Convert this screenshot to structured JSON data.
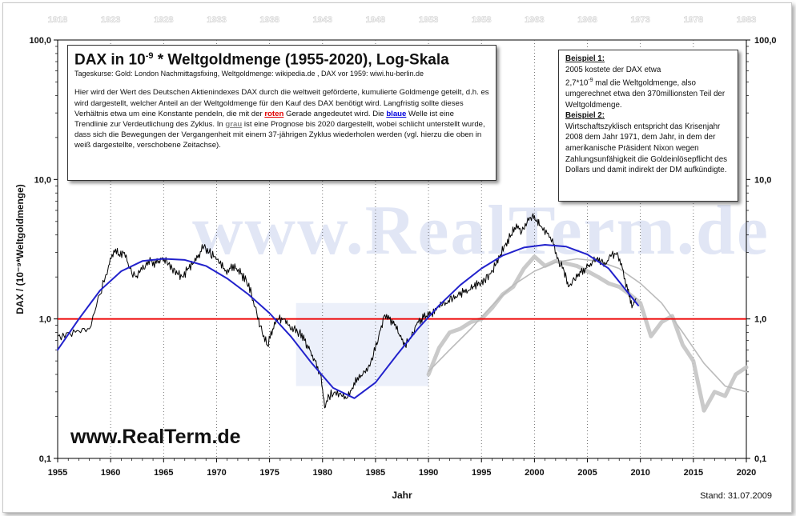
{
  "title_main": "DAX in 10",
  "title_exp": "-9",
  "title_rest": " * Weltgoldmenge  (1955-2020), Log-Skala",
  "sources": "Tageskurse:     Gold: London Nachmittagsfixing,  Weltgoldmenge: wikipedia.de ,  DAX vor 1959:  wiwi.hu-berlin.de",
  "description": {
    "part1": "Hier wird der Wert des Deutschen Aktienindexes DAX durch die weltweit geförderte, kumulierte Goldmenge geteilt, d.h. es wird dargestellt, welcher Anteil an der Weltgoldmenge für den Kauf des DAX benötigt wird. Langfristig sollte dieses Verhältnis etwa um eine Konstante pendeln, die mit der ",
    "kw_red": "roten",
    "part2": " Gerade angedeutet wird. Die ",
    "kw_blue": "blaue",
    "part3": " Welle ist eine Trendlinie zur Verdeutlichung des Zyklus. In ",
    "kw_grey": "grau",
    "part4": " ist eine Prognose bis 2020 dargestellt, wobei schlicht unterstellt wurde, dass sich die Bewegungen der Vergangenheit mit einem 37-jährigen Zyklus wiederholen werden (vgl. hierzu die oben in weiß dargestellte, verschobene Zeitachse)."
  },
  "example1": {
    "title": "Beispiel 1:",
    "line1": "2005 kostete der DAX etwa",
    "line2a": "2,7*10",
    "line2exp": "-9",
    "line2b": " mal die Weltgoldmenge, also umgerechnet etwa den 370millionsten Teil der Weltgoldmenge."
  },
  "example2": {
    "title": "Beispiel 2:",
    "text": "Wirtschaftszyklisch entspricht das Krisenjahr 2008 dem Jahr 1971, dem Jahr, in dem der amerikanische Präsident Nixon wegen Zahlungsunfähigkeit die Goldeinlösepflicht des Dollars und damit indirekt der DM aufkündigte."
  },
  "website": "www.RealTerm.de",
  "watermark": "www.RealTerm.de",
  "stand": "Stand: 31.07.2009",
  "colors": {
    "dax": "#000000",
    "trend": "#2222cc",
    "constant": "#ee0000",
    "forecast": "#bbbbbb",
    "forecast_thick": "#c4c4c4"
  },
  "chart_data": {
    "type": "line",
    "xlabel": "Jahr",
    "ylabel": "DAX / (10⁻⁹*Weltgoldmenge)",
    "x_ticks": [
      "1955",
      "1960",
      "1965",
      "1970",
      "1975",
      "1980",
      "1985",
      "1990",
      "1995",
      "2000",
      "2005",
      "2010",
      "2015",
      "2020"
    ],
    "x_top_ticks": [
      "1918",
      "1923",
      "1928",
      "1933",
      "1938",
      "1943",
      "1948",
      "1953",
      "1958",
      "1963",
      "1968",
      "1973",
      "1978",
      "1983"
    ],
    "y_ticks": [
      "100,0",
      "10,0",
      "1,0",
      "0,1"
    ],
    "y_scale": "log",
    "ylim": [
      0.1,
      100
    ],
    "xlim": [
      1955,
      2020
    ],
    "grid": "vertical dotted every 5 years",
    "constant_line": {
      "y": 1.0
    },
    "series": [
      {
        "key": "dax",
        "x": [
          1955,
          1956,
          1957,
          1958,
          1959,
          1959.8,
          1960.3,
          1960.8,
          1961.3,
          1961.8,
          1962.4,
          1962.8,
          1963.3,
          1963.8,
          1964.3,
          1964.8,
          1965.3,
          1965.8,
          1966.3,
          1966.8,
          1967.3,
          1967.8,
          1968.3,
          1968.8,
          1969.3,
          1969.8,
          1970.3,
          1970.8,
          1971.3,
          1971.8,
          1972.3,
          1972.8,
          1973.3,
          1973.8,
          1974.3,
          1974.8,
          1975.3,
          1975.8,
          1976.3,
          1976.8,
          1977.3,
          1977.8,
          1978.3,
          1978.8,
          1979.3,
          1979.8,
          1980.2,
          1980.6,
          1981.2,
          1981.8,
          1982.3,
          1982.8,
          1983.3,
          1983.8,
          1984.3,
          1984.8,
          1985.3,
          1985.8,
          1986.3,
          1986.8,
          1987.3,
          1987.8,
          1988.3,
          1988.8,
          1989.3,
          1989.8,
          1990.3,
          1990.8,
          1991.3,
          1991.8,
          1992.3,
          1992.8,
          1993.3,
          1993.8,
          1994.3,
          1994.8,
          1995.3,
          1995.8,
          1996.3,
          1996.8,
          1997.3,
          1997.8,
          1998.3,
          1998.8,
          1999.3,
          1999.8,
          2000.2,
          2000.6,
          2001.2,
          2001.8,
          2002.3,
          2002.8,
          2003.2,
          2003.8,
          2004.3,
          2004.8,
          2005.3,
          2005.8,
          2006.3,
          2006.8,
          2007.3,
          2007.8,
          2008.3,
          2008.8,
          2009.2,
          2009.6
        ],
        "y": [
          0.75,
          0.8,
          0.82,
          0.85,
          1.5,
          2.4,
          3.1,
          2.9,
          3.0,
          2.3,
          2.0,
          2.2,
          2.4,
          2.6,
          2.5,
          2.7,
          2.6,
          2.3,
          2.1,
          2.0,
          2.3,
          2.5,
          2.9,
          3.3,
          3.0,
          2.8,
          2.5,
          2.2,
          2.3,
          2.3,
          2.1,
          1.9,
          1.5,
          1.1,
          0.8,
          0.65,
          0.85,
          1.0,
          1.0,
          0.9,
          0.85,
          0.8,
          0.7,
          0.6,
          0.5,
          0.4,
          0.23,
          0.28,
          0.3,
          0.28,
          0.27,
          0.32,
          0.38,
          0.4,
          0.45,
          0.55,
          0.75,
          1.05,
          1.0,
          0.9,
          0.75,
          0.65,
          0.72,
          0.9,
          1.0,
          1.05,
          1.1,
          1.2,
          1.25,
          1.3,
          1.4,
          1.5,
          1.55,
          1.6,
          1.7,
          1.8,
          1.9,
          2.1,
          2.4,
          2.9,
          3.5,
          4.0,
          4.8,
          4.2,
          4.9,
          5.5,
          5.0,
          4.6,
          4.1,
          3.4,
          2.6,
          2.2,
          1.7,
          1.9,
          2.2,
          2.3,
          2.5,
          2.7,
          2.6,
          2.5,
          2.9,
          3.0,
          2.3,
          1.6,
          1.2,
          1.4
        ]
      },
      {
        "key": "trend",
        "x": [
          1955,
          1957,
          1959,
          1961,
          1963,
          1965,
          1967,
          1969,
          1971,
          1973,
          1975,
          1977,
          1979,
          1981,
          1983,
          1985,
          1987,
          1989,
          1991,
          1993,
          1995,
          1997,
          1999,
          2001,
          2003,
          2005,
          2007,
          2009.8
        ],
        "y": [
          0.6,
          1.0,
          1.6,
          2.2,
          2.6,
          2.7,
          2.65,
          2.4,
          1.95,
          1.5,
          1.1,
          0.75,
          0.48,
          0.32,
          0.27,
          0.35,
          0.55,
          0.85,
          1.25,
          1.75,
          2.3,
          2.85,
          3.25,
          3.4,
          3.3,
          2.9,
          2.3,
          1.25
        ]
      },
      {
        "key": "forecast",
        "x": [
          1990,
          1992,
          1994,
          1996,
          1998,
          2000,
          2002,
          2004,
          2006,
          2008,
          2010,
          2012,
          2014,
          2016,
          2018,
          2020
        ],
        "y": [
          0.42,
          0.6,
          0.85,
          1.25,
          1.75,
          2.2,
          2.55,
          2.7,
          2.6,
          2.3,
          1.8,
          1.3,
          0.8,
          0.48,
          0.33,
          0.3
        ]
      },
      {
        "key": "forecast_thick",
        "x": [
          1990,
          1991,
          1992,
          1993,
          1994,
          1995,
          1996,
          1997,
          1998,
          1999,
          2000,
          2001,
          2002,
          2003,
          2004,
          2005,
          2006,
          2007,
          2008,
          2009,
          2010,
          2011,
          2012,
          2013,
          2014,
          2015,
          2016,
          2017,
          2018,
          2019,
          2020
        ],
        "y": [
          0.4,
          0.62,
          0.8,
          0.85,
          0.95,
          1.0,
          1.2,
          1.5,
          1.7,
          2.3,
          2.8,
          2.4,
          2.6,
          2.5,
          2.4,
          2.2,
          2.0,
          1.8,
          1.7,
          1.5,
          1.3,
          0.75,
          0.95,
          1.05,
          0.65,
          0.5,
          0.22,
          0.3,
          0.28,
          0.4,
          0.45
        ]
      }
    ]
  }
}
